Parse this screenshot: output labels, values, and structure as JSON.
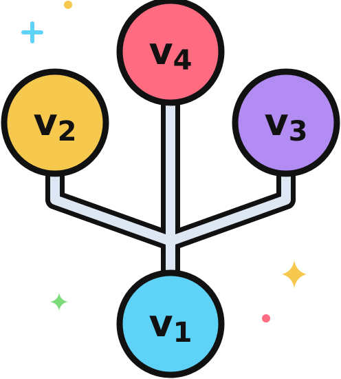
{
  "nodes": {
    "v4": {
      "letter": "v",
      "sub": "4",
      "fill": "#ff6b81"
    },
    "v2": {
      "letter": "v",
      "sub": "2",
      "fill": "#f6c94e"
    },
    "v3": {
      "letter": "v",
      "sub": "3",
      "fill": "#b28cf3"
    },
    "v1": {
      "letter": "v",
      "sub": "1",
      "fill": "#5fd3f7"
    }
  },
  "edge_fill": "#dde7f4",
  "outline": "#111111",
  "decorations": {
    "plus_left": "#5fd3f7",
    "dot_top": "#f6c94e",
    "sparkle_right": "#f6c94e",
    "sparkle_left": "#7ddc7a",
    "dot_right": "#ff6b81"
  }
}
